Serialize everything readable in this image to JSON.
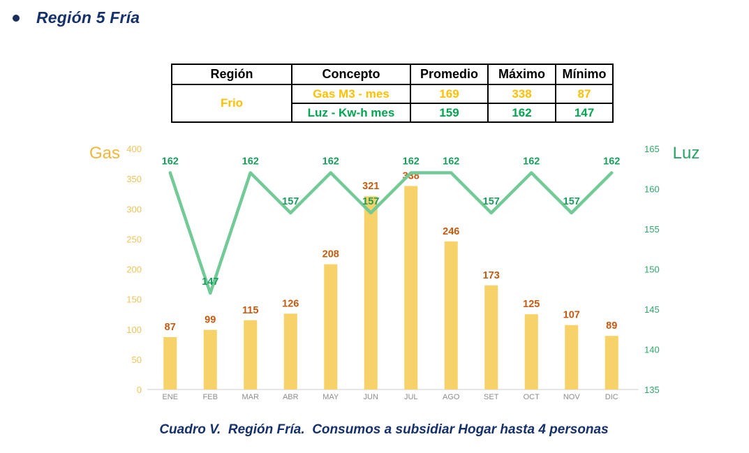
{
  "title": "Región 5 Fría",
  "caption": "Cuadro V.  Región Fría.  Consumos a subsidiar Hogar hasta 4 personas",
  "table": {
    "headers": [
      "Región",
      "Concepto",
      "Promedio",
      "Máximo",
      "Mínimo"
    ],
    "region": "Frio",
    "rows": [
      {
        "concepto": "Gas M3 - mes",
        "promedio": "169",
        "maximo": "338",
        "minimo": "87",
        "color": "#FFC000"
      },
      {
        "concepto": "Luz - Kw-h mes",
        "promedio": "159",
        "maximo": "162",
        "minimo": "147",
        "color": "#00A550"
      }
    ]
  },
  "chart_data": {
    "type": "bar",
    "subtype": "combo bar+line, dual axis",
    "categories": [
      "ENE",
      "FEB",
      "MAR",
      "ABR",
      "MAY",
      "JUN",
      "JUL",
      "AGO",
      "SET",
      "OCT",
      "NOV",
      "DIC"
    ],
    "series": [
      {
        "name": "Gas",
        "type": "bar",
        "axis": "left",
        "values": [
          87,
          99,
          115,
          126,
          208,
          321,
          338,
          246,
          173,
          125,
          107,
          89
        ],
        "bar_color": "#F7D269",
        "label_color": "#C55A11"
      },
      {
        "name": "Luz",
        "type": "line",
        "axis": "right",
        "values": [
          162,
          147,
          162,
          157,
          162,
          157,
          162,
          162,
          157,
          162,
          157,
          162
        ],
        "line_color": "#72CB97",
        "label_color": "#1B9E5C"
      }
    ],
    "left_axis": {
      "title": "Gas",
      "min": 0,
      "max": 400,
      "step": 50,
      "tick_color": "#EFC35C",
      "title_color": "#F0B63C"
    },
    "right_axis": {
      "title": "Luz",
      "min": 135,
      "max": 165,
      "step": 5,
      "tick_color": "#2FA76B",
      "title_color": "#27A465"
    },
    "month_label_color": "#8C8C8C",
    "axis_line_color": "#D6D6D6",
    "grid": false,
    "legend_position": "axis titles at top corners"
  }
}
